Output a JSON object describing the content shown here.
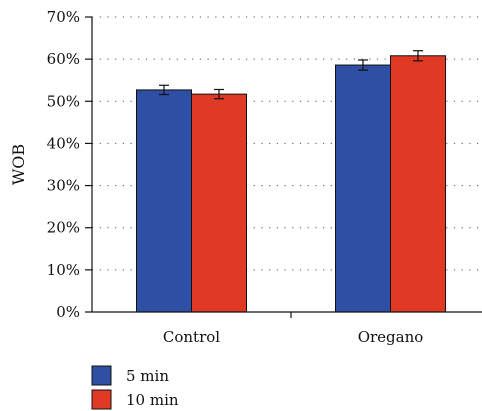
{
  "chart_data": {
    "type": "bar",
    "title": "",
    "xlabel": "",
    "ylabel": "WOB",
    "categories": [
      "Control",
      "Oregano"
    ],
    "series": [
      {
        "name": "5 min",
        "values": [
          52.7,
          58.6
        ],
        "errors": [
          1.1,
          1.2
        ],
        "color": "#2e4fa3"
      },
      {
        "name": "10 min",
        "values": [
          51.7,
          60.8
        ],
        "errors": [
          1.1,
          1.2
        ],
        "color": "#e03a25"
      }
    ],
    "ylim": [
      0,
      70
    ],
    "yticks": [
      0,
      10,
      20,
      30,
      40,
      50,
      60,
      70
    ],
    "ytick_labels": [
      "0%",
      "10%",
      "20%",
      "30%",
      "40%",
      "50%",
      "60%",
      "70%"
    ],
    "grid": true,
    "legend_position": "bottom-left"
  }
}
